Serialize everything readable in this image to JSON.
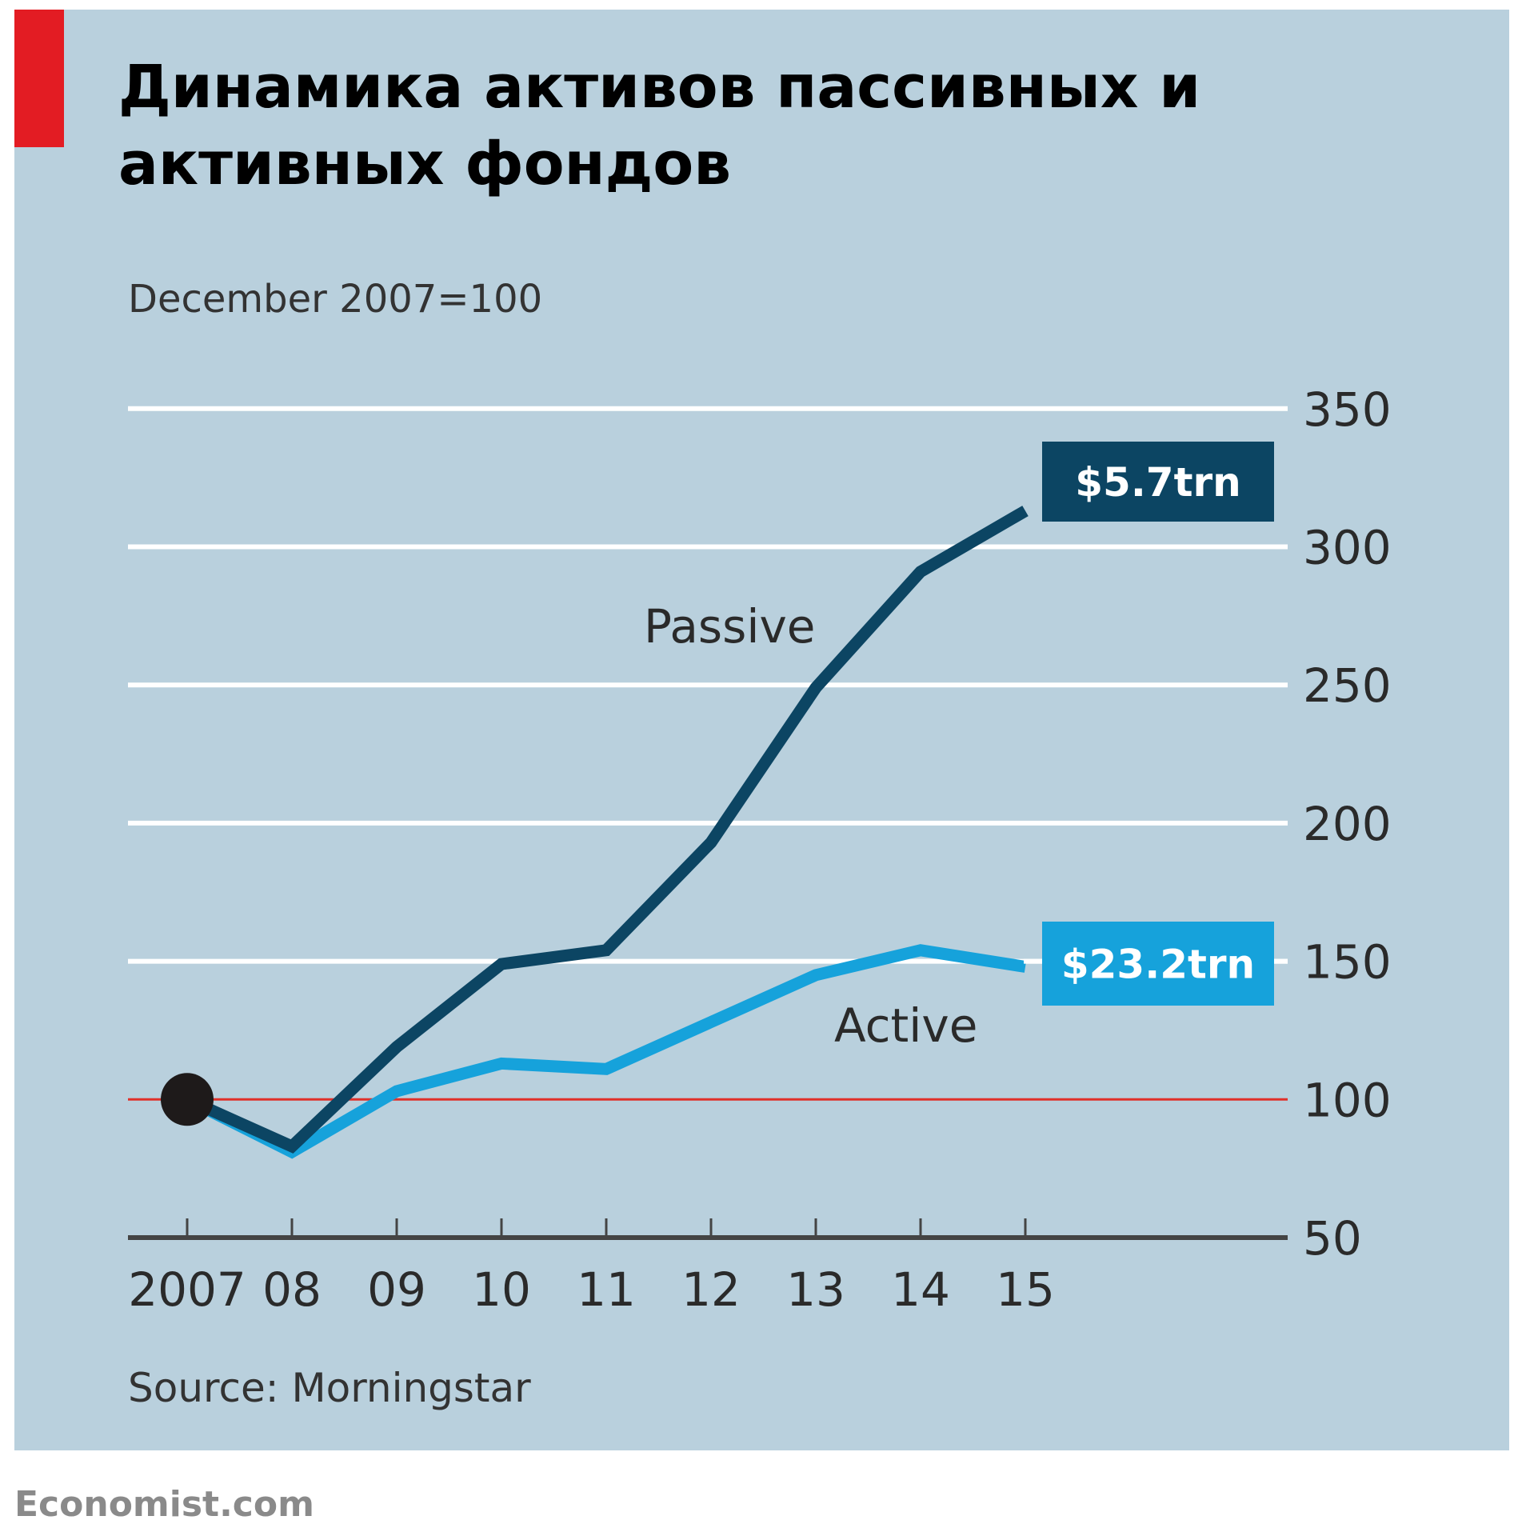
{
  "colors": {
    "background": "#b9d0dd",
    "accent": "#e31c23",
    "passive": "#0c4563",
    "active": "#16a2db",
    "baseline": "#e0302a"
  },
  "title_lines": [
    "Динамика активов пассивных и",
    "активных фондов"
  ],
  "footer": {
    "source": "Source: Morningstar",
    "brand": "Economist.com"
  },
  "chart_data": {
    "type": "line",
    "title": "Динамика активов пассивных и активных фондов",
    "subtitle": "December 2007=100",
    "x": [
      "2007",
      "08",
      "09",
      "10",
      "11",
      "12",
      "13",
      "14",
      "15"
    ],
    "ylim": [
      50,
      350
    ],
    "yticks": [
      "350",
      "300",
      "250",
      "200",
      "150",
      "100",
      "50"
    ],
    "ytick_values": [
      350,
      300,
      250,
      200,
      150,
      100,
      50
    ],
    "grid": true,
    "reference_line": 100,
    "series": [
      {
        "name": "Passive",
        "values": [
          100,
          83,
          119,
          149,
          154,
          193,
          249,
          291,
          313
        ],
        "end_label": "$5.7trn"
      },
      {
        "name": "Active",
        "values": [
          100,
          81,
          103,
          113,
          111,
          128,
          145,
          154,
          148
        ],
        "end_label": "$23.2trn"
      }
    ]
  }
}
